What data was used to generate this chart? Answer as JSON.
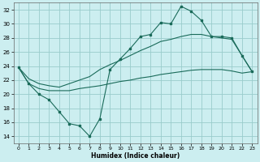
{
  "xlabel": "Humidex (Indice chaleur)",
  "bg_color": "#cceef0",
  "grid_color": "#99cccc",
  "line_color": "#1a6b5a",
  "xlim": [
    -0.5,
    23.5
  ],
  "ylim": [
    13,
    33
  ],
  "xticks": [
    0,
    1,
    2,
    3,
    4,
    5,
    6,
    7,
    8,
    9,
    10,
    11,
    12,
    13,
    14,
    15,
    16,
    17,
    18,
    19,
    20,
    21,
    22,
    23
  ],
  "yticks": [
    14,
    16,
    18,
    20,
    22,
    24,
    26,
    28,
    30,
    32
  ],
  "line_zigzag_x": [
    0,
    1,
    2,
    3,
    4,
    5,
    6,
    7,
    8,
    9,
    10,
    11,
    12,
    13,
    14,
    15,
    16,
    17,
    18,
    19,
    20,
    21,
    22,
    23
  ],
  "line_zigzag_y": [
    23.8,
    21.5,
    20.0,
    19.2,
    17.5,
    15.8,
    15.5,
    14.0,
    16.5,
    23.5,
    25.0,
    26.5,
    28.2,
    28.5,
    30.2,
    30.0,
    32.5,
    31.8,
    30.5,
    28.2,
    28.2,
    28.0,
    25.5,
    23.2
  ],
  "line_upper_x": [
    0,
    1,
    2,
    3,
    4,
    5,
    6,
    7,
    8,
    9,
    10,
    11,
    12,
    13,
    14,
    15,
    16,
    17,
    18,
    19,
    20,
    21,
    22,
    23
  ],
  "line_upper_y": [
    23.8,
    22.2,
    21.5,
    21.2,
    21.0,
    21.5,
    22.0,
    22.5,
    23.5,
    24.2,
    24.8,
    25.5,
    26.2,
    26.8,
    27.5,
    27.8,
    28.2,
    28.5,
    28.5,
    28.2,
    28.0,
    27.8,
    25.5,
    23.2
  ],
  "line_lower_x": [
    0,
    1,
    2,
    3,
    4,
    5,
    6,
    7,
    8,
    9,
    10,
    11,
    12,
    13,
    14,
    15,
    16,
    17,
    18,
    19,
    20,
    21,
    22,
    23
  ],
  "line_lower_y": [
    23.8,
    21.5,
    20.8,
    20.5,
    20.5,
    20.5,
    20.8,
    21.0,
    21.2,
    21.5,
    21.8,
    22.0,
    22.3,
    22.5,
    22.8,
    23.0,
    23.2,
    23.4,
    23.5,
    23.5,
    23.5,
    23.3,
    23.0,
    23.2
  ]
}
